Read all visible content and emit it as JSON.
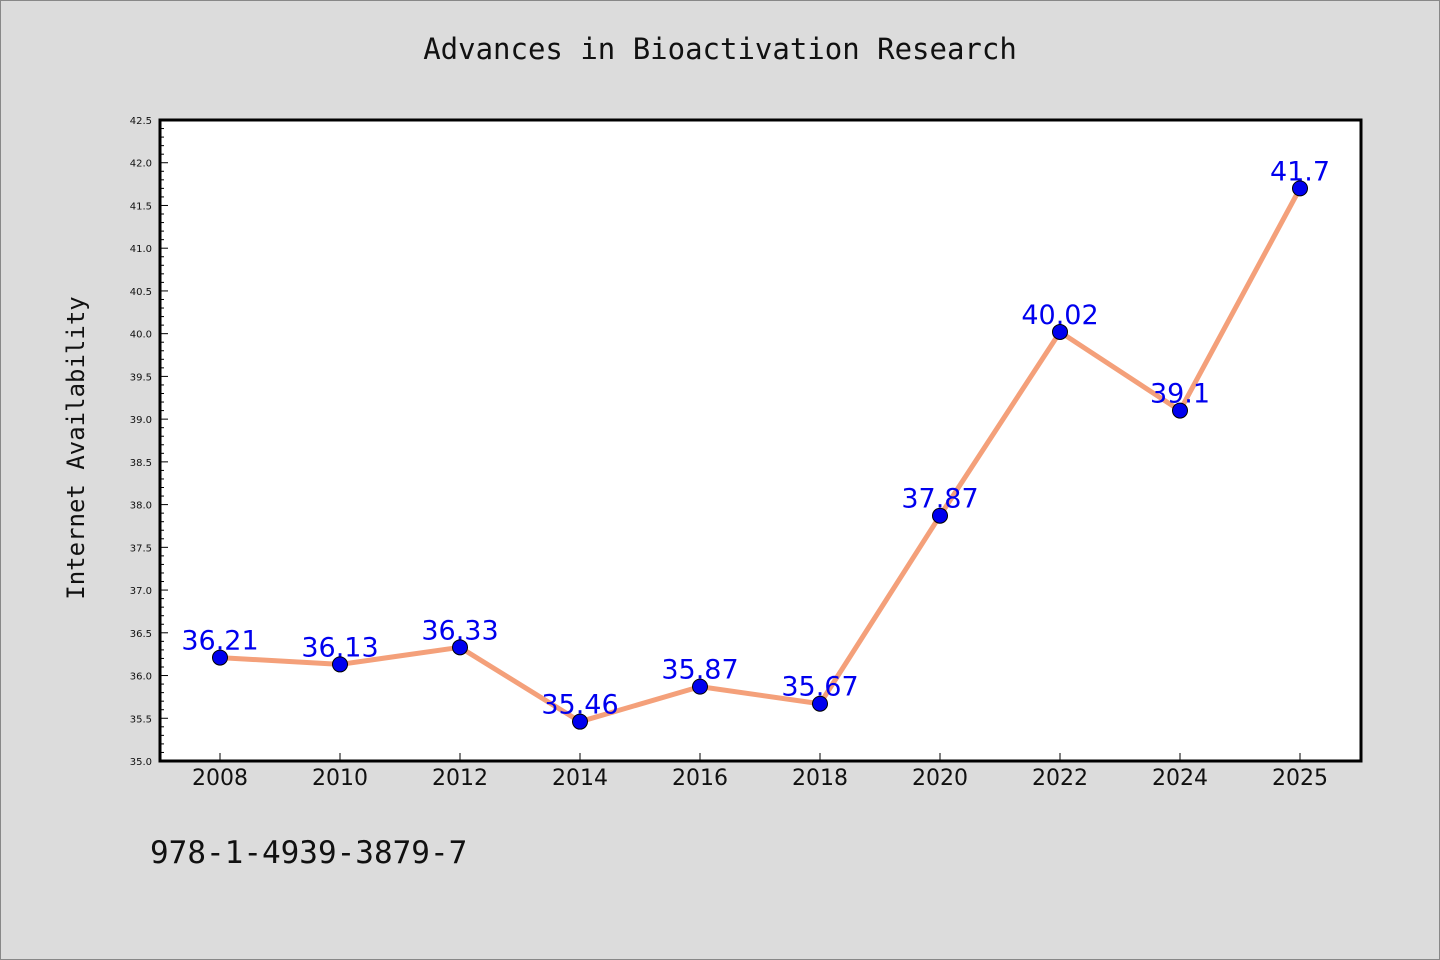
{
  "chart_data": {
    "type": "line",
    "title": "Advances in Bioactivation Research",
    "xlabel": "",
    "ylabel": "Internet Availability",
    "categories": [
      "2008",
      "2010",
      "2012",
      "2014",
      "2016",
      "2018",
      "2020",
      "2022",
      "2024",
      "2025"
    ],
    "series": [
      {
        "values": [
          36.21,
          36.13,
          36.33,
          35.46,
          35.87,
          35.67,
          37.87,
          40.02,
          39.1,
          41.7
        ],
        "data_labels": [
          "36.21",
          "36.13",
          "36.33",
          "35.46",
          "35.87",
          "35.67",
          "37.87",
          "40.02",
          "39.1",
          "41.7"
        ]
      }
    ],
    "ylim": [
      35.0,
      42.5
    ],
    "yticks": [
      "35.0",
      "35.5",
      "36.0",
      "36.5",
      "37.0",
      "37.5",
      "38.0",
      "38.5",
      "39.0",
      "39.5",
      "40.0",
      "40.5",
      "41.0",
      "41.5",
      "42.0",
      "42.5"
    ],
    "grid": false,
    "legend": "none",
    "colors": {
      "line": "#f4a07a",
      "marker": "#0000ee",
      "label": "#0000ee",
      "plot_bg": "#ffffff",
      "page_bg": "#dcdcdc"
    }
  },
  "footer": {
    "isbn": "978-1-4939-3879-7"
  }
}
